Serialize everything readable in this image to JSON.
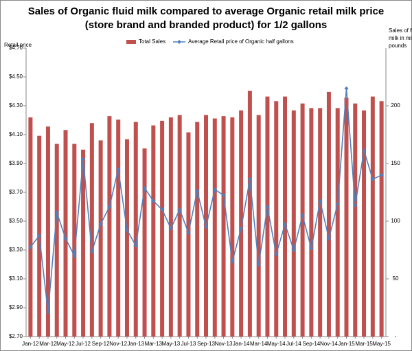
{
  "chart_data": {
    "type": "bar_line",
    "title": [
      "Sales of Organic fluid milk compared to average Organic retail milk price",
      "(store brand and branded product) for 1/2 gallons"
    ],
    "y_label": "Retail price",
    "y2_label": [
      "Sales of fluid",
      "milk in millions",
      "pounds"
    ],
    "categories": [
      "Jan-12",
      null,
      "Mar-12",
      null,
      "May-12",
      null,
      "Jul-12",
      null,
      "Sep-12",
      null,
      "Nov-12",
      null,
      "Jan-13",
      null,
      "Mar-13",
      null,
      "May-13",
      null,
      "Jul-13",
      null,
      "Sep-13",
      null,
      "Nov-13",
      null,
      "Jan-14",
      null,
      "Mar-14",
      null,
      "May-14",
      null,
      "Jul-14",
      null,
      "Sep-14",
      null,
      "Nov-14",
      null,
      "Jan-15",
      null,
      "Mar-15",
      null,
      "May-15"
    ],
    "series": [
      {
        "name": "Total Sales",
        "color": "#c0504d",
        "axis": "y2",
        "values": [
          190,
          174,
          182,
          167,
          179,
          167,
          162,
          185,
          170,
          191,
          188,
          171,
          186,
          163,
          183,
          187,
          190,
          192,
          177,
          186,
          192,
          189,
          191,
          190,
          196,
          213,
          192,
          208,
          204,
          208,
          196,
          202,
          198,
          198,
          212,
          198,
          207,
          202,
          196,
          208,
          204
        ]
      },
      {
        "name": "Average Retail price of Organic half gallons",
        "color": "#4f81bd",
        "values": [
          3.32,
          3.4,
          2.87,
          3.56,
          3.38,
          3.26,
          3.93,
          3.29,
          3.48,
          3.6,
          3.86,
          3.44,
          3.33,
          3.73,
          3.64,
          3.58,
          3.45,
          3.58,
          3.42,
          3.71,
          3.46,
          3.72,
          3.68,
          3.22,
          3.45,
          3.79,
          3.2,
          3.6,
          3.27,
          3.48,
          3.3,
          3.54,
          3.31,
          3.64,
          3.38,
          3.62,
          4.42,
          3.61,
          3.99,
          3.79,
          3.82
        ]
      }
    ],
    "ylim": [
      2.7,
      4.7
    ],
    "yticks": [
      {
        "value": 2.7,
        "label": "$2.70"
      },
      {
        "value": 2.9,
        "label": "$2.90"
      },
      {
        "value": 3.1,
        "label": "$3.10"
      },
      {
        "value": 3.3,
        "label": "$3.30"
      },
      {
        "value": 3.5,
        "label": "$3.50"
      },
      {
        "value": 3.7,
        "label": "$3.70"
      },
      {
        "value": 3.9,
        "label": "$3.90"
      },
      {
        "value": 4.1,
        "label": "$4.10"
      },
      {
        "value": 4.3,
        "label": "$4.30"
      },
      {
        "value": 4.5,
        "label": "$4.50"
      },
      {
        "value": 4.7,
        "label": "$4.70"
      }
    ],
    "y2lim": [
      0,
      250
    ],
    "y2ticks": [
      {
        "value": 0,
        "label": "-"
      },
      50,
      100,
      150,
      200
    ],
    "grid": false,
    "legend": "top"
  }
}
